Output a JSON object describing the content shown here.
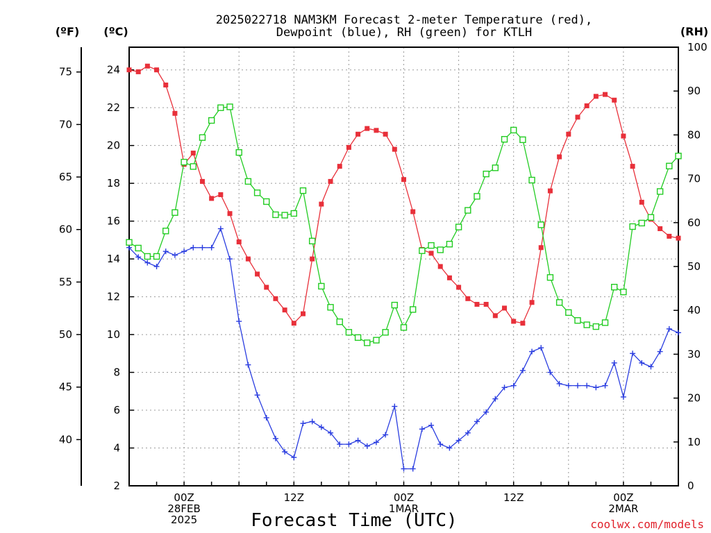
{
  "chart_data": {
    "type": "line",
    "title_line1": "2025022718 NAM3KM Forecast 2-meter Temperature (red),",
    "title_line2": "Dewpoint (blue), RH (green) for KTLH",
    "xlabel": "Forecast Time (UTC)",
    "left_unit_f": "(ºF)",
    "left_unit_c": "(ºC)",
    "right_unit": "(RH)",
    "credit": "coolwx.com/models",
    "ylim_c": [
      2,
      25.2
    ],
    "ylim_rh": [
      0,
      100
    ],
    "yticks_c": [
      2,
      4,
      6,
      8,
      10,
      12,
      14,
      16,
      18,
      20,
      22,
      24
    ],
    "yticks_f": [
      40,
      45,
      50,
      55,
      60,
      65,
      70,
      75
    ],
    "yticks_rh": [
      0,
      10,
      20,
      30,
      40,
      50,
      60,
      70,
      80,
      90,
      100
    ],
    "xlim_hours": [
      18,
      78
    ],
    "xticks": [
      {
        "hour": 24,
        "lines": [
          "00Z",
          "28FEB",
          "2025"
        ]
      },
      {
        "hour": 36,
        "lines": [
          "12Z"
        ]
      },
      {
        "hour": 48,
        "lines": [
          "00Z",
          "1MAR"
        ]
      },
      {
        "hour": 60,
        "lines": [
          "12Z"
        ]
      },
      {
        "hour": 72,
        "lines": [
          "00Z",
          "2MAR"
        ]
      }
    ],
    "x": [
      18,
      19,
      20,
      21,
      22,
      23,
      24,
      25,
      26,
      27,
      28,
      29,
      30,
      31,
      32,
      33,
      34,
      35,
      36,
      37,
      38,
      39,
      40,
      41,
      42,
      43,
      44,
      45,
      46,
      47,
      48,
      49,
      50,
      51,
      52,
      53,
      54,
      55,
      56,
      57,
      58,
      59,
      60,
      61,
      62,
      63,
      64,
      65,
      66,
      67,
      68,
      69,
      70,
      71,
      72,
      73,
      74,
      75,
      76,
      77,
      78
    ],
    "series": [
      {
        "name": "Temperature",
        "unit": "C",
        "color": "#e8303a",
        "marker": "filled-square",
        "values": [
          24.0,
          23.9,
          24.2,
          24.0,
          23.2,
          21.7,
          19.0,
          19.6,
          18.1,
          17.2,
          17.4,
          16.4,
          14.9,
          14.0,
          13.2,
          12.5,
          11.9,
          11.3,
          10.6,
          11.1,
          14.0,
          16.9,
          18.1,
          18.9,
          19.9,
          20.6,
          20.9,
          20.8,
          20.6,
          19.8,
          18.2,
          16.5,
          14.5,
          14.3,
          13.6,
          13.0,
          12.5,
          11.9,
          11.6,
          11.6,
          11.0,
          11.4,
          10.7,
          10.6,
          11.7,
          14.6,
          17.6,
          19.4,
          20.6,
          21.5,
          22.1,
          22.6,
          22.7,
          22.4,
          20.5,
          18.9,
          17.0,
          16.1,
          15.6,
          15.2,
          15.1
        ]
      },
      {
        "name": "Dewpoint",
        "unit": "C",
        "color": "#2a3de0",
        "marker": "plus",
        "values": [
          14.6,
          14.1,
          13.8,
          13.6,
          14.4,
          14.2,
          14.4,
          14.6,
          14.6,
          14.6,
          15.6,
          14.0,
          10.7,
          8.4,
          6.8,
          5.6,
          4.5,
          3.8,
          3.5,
          5.3,
          5.4,
          5.1,
          4.8,
          4.2,
          4.2,
          4.4,
          4.1,
          4.3,
          4.7,
          6.2,
          2.9,
          2.9,
          5.0,
          5.2,
          4.2,
          4.0,
          4.4,
          4.8,
          5.4,
          5.9,
          6.6,
          7.2,
          7.3,
          8.1,
          9.1,
          9.3,
          8.0,
          7.4,
          7.3,
          7.3,
          7.3,
          7.2,
          7.3,
          8.5,
          6.7,
          9.0,
          8.5,
          8.3,
          9.1,
          10.3,
          10.1
        ]
      },
      {
        "name": "RH",
        "unit": "%",
        "color": "#22cc22",
        "marker": "open-square",
        "values": [
          55.5,
          54.2,
          52.3,
          52.3,
          58.1,
          62.3,
          73.8,
          72.8,
          79.4,
          83.3,
          86.2,
          86.4,
          76.0,
          69.4,
          66.8,
          64.8,
          61.8,
          61.7,
          62.1,
          67.3,
          55.8,
          45.5,
          40.7,
          37.4,
          35.0,
          33.8,
          32.6,
          33.2,
          35.0,
          41.2,
          36.1,
          40.2,
          53.6,
          54.8,
          53.8,
          55.1,
          59.0,
          62.8,
          66.0,
          71.1,
          72.5,
          79.0,
          81.1,
          78.9,
          69.7,
          59.5,
          47.5,
          41.8,
          39.5,
          37.7,
          36.7,
          36.3,
          37.2,
          45.3,
          44.2,
          59.1,
          59.9,
          61.2,
          67.1,
          72.9,
          75.2
        ]
      }
    ]
  }
}
